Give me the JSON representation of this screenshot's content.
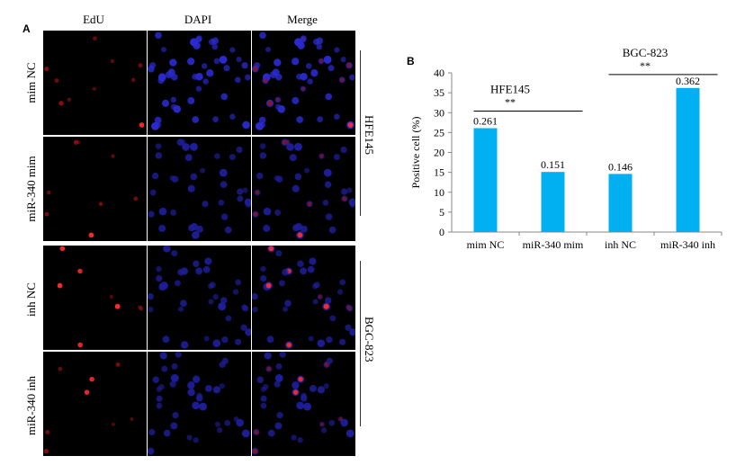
{
  "panel_a": {
    "letter": "A",
    "column_headers": [
      "EdU",
      "DAPI",
      "Merge"
    ],
    "row_labels": [
      "mim NC",
      "miR-340 mim",
      "inh NC",
      "miR-340 inh"
    ],
    "group_labels": [
      "HFE145",
      "BGC-823"
    ]
  },
  "panel_b": {
    "letter": "B"
  },
  "chart_data": {
    "type": "bar",
    "categories": [
      "mim NC",
      "miR-340 mim",
      "inh NC",
      "miR-340 inh"
    ],
    "values": [
      26.1,
      15.1,
      14.6,
      36.2
    ],
    "data_labels": [
      "0.261",
      "0.151",
      "0.146",
      "0.362"
    ],
    "ylabel": "Positive cell (%)",
    "ylim": [
      0,
      40
    ],
    "yticks": [
      0,
      5,
      10,
      15,
      20,
      25,
      30,
      35,
      40
    ],
    "bar_color": "#00b0f0",
    "comparisons": [
      {
        "group": "HFE145",
        "significance": "**",
        "between": [
          0,
          1
        ]
      },
      {
        "group": "BGC-823",
        "significance": "**",
        "between": [
          2,
          3
        ]
      }
    ]
  }
}
